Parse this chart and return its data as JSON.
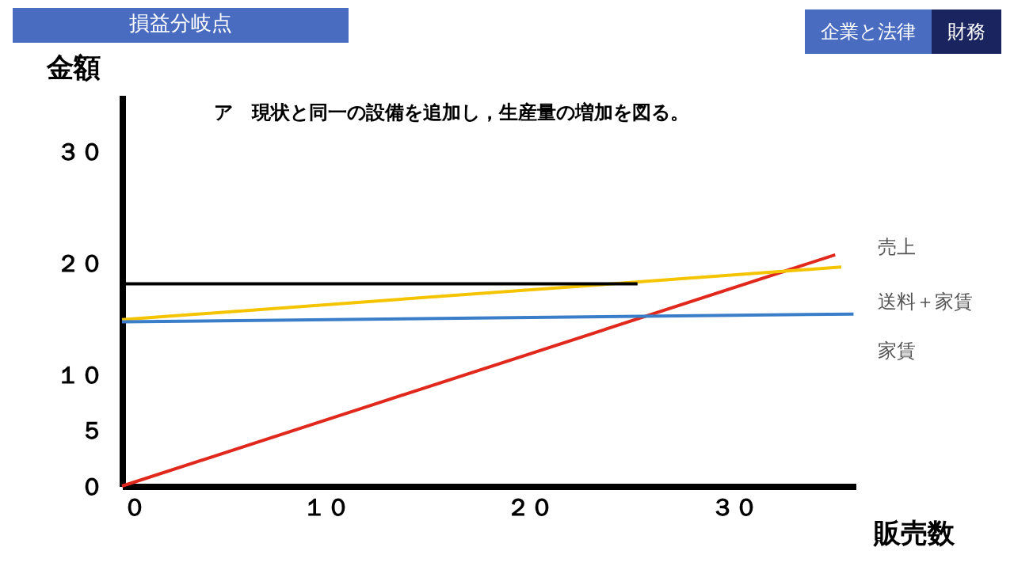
{
  "chart_data": {
    "type": "line",
    "title": "損益分岐点",
    "subtitle": "ア　現状と同一の設備を追加し，生産量の増加を図る。",
    "xlabel": "販売数",
    "ylabel": "金額",
    "annotations": [
      "企業と法律",
      "財務"
    ],
    "series": [
      {
        "name": "売上",
        "color": "#e0281c",
        "x": [
          0,
          35
        ],
        "values": [
          0,
          20.7
        ]
      },
      {
        "name": "送料＋家賃",
        "color": "#f5c400",
        "x": [
          0,
          35.3
        ],
        "values": [
          14.9,
          19.6
        ]
      },
      {
        "name": "家賃",
        "color": "#3a7dc8",
        "x": [
          0,
          35.9
        ],
        "values": [
          14.7,
          15.4
        ]
      },
      {
        "color": "#000000",
        "x": [
          0,
          25.3
        ],
        "values": [
          18.1,
          18.1
        ]
      }
    ],
    "xlim": [
      0,
      36
    ],
    "ylim": [
      0,
      35
    ],
    "xticks": [
      {
        "value": 0,
        "label": "０"
      },
      {
        "value": 10,
        "label": "１０"
      },
      {
        "value": 20,
        "label": "２０"
      },
      {
        "value": 30,
        "label": "３０"
      }
    ],
    "yticks": [
      {
        "value": 0,
        "label": "０"
      },
      {
        "value": 5,
        "label": "５"
      },
      {
        "value": 10,
        "label": "１０"
      },
      {
        "value": 20,
        "label": "２０"
      },
      {
        "value": 30,
        "label": "３０"
      }
    ],
    "grid": false,
    "legend": false,
    "marker": "none",
    "line_style": "solid"
  }
}
